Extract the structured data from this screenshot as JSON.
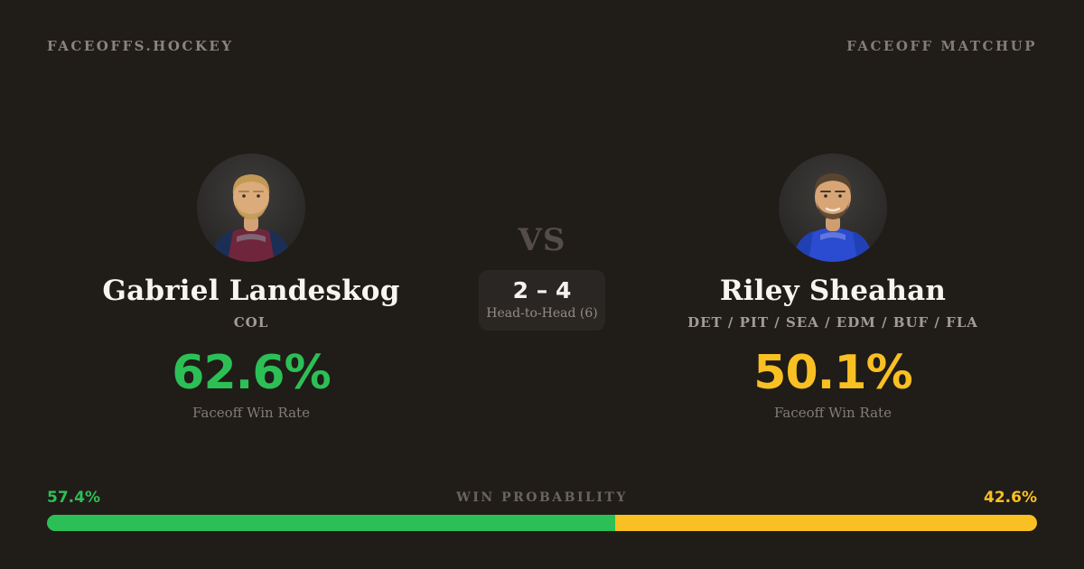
{
  "header": {
    "brand": "FACEOFFS.HOCKEY",
    "page_label": "FACEOFF MATCHUP"
  },
  "matchup": {
    "vs_label": "VS",
    "head_to_head": {
      "score": "2 – 4",
      "label": "Head-to-Head (6)"
    },
    "players": [
      {
        "name": "Gabriel Landeskog",
        "teams": "COL",
        "win_rate": "62.6%",
        "win_rate_label": "Faceoff Win Rate",
        "accent": "#2cbf56"
      },
      {
        "name": "Riley Sheahan",
        "teams": "DET / PIT / SEA / EDM / BUF / FLA",
        "win_rate": "50.1%",
        "win_rate_label": "Faceoff Win Rate",
        "accent": "#f9c023"
      }
    ]
  },
  "win_probability": {
    "label": "WIN PROBABILITY",
    "left_pct": "57.4%",
    "right_pct": "42.6%",
    "left_value": 57.4,
    "right_value": 42.6,
    "left_color": "#2cbf56",
    "right_color": "#f9c023"
  },
  "colors": {
    "background": "#201c18",
    "card_box": "#2a2623",
    "text_primary": "#f7f5f2",
    "text_secondary": "#8b847d",
    "green": "#2cbf56",
    "gold": "#f9c023"
  }
}
